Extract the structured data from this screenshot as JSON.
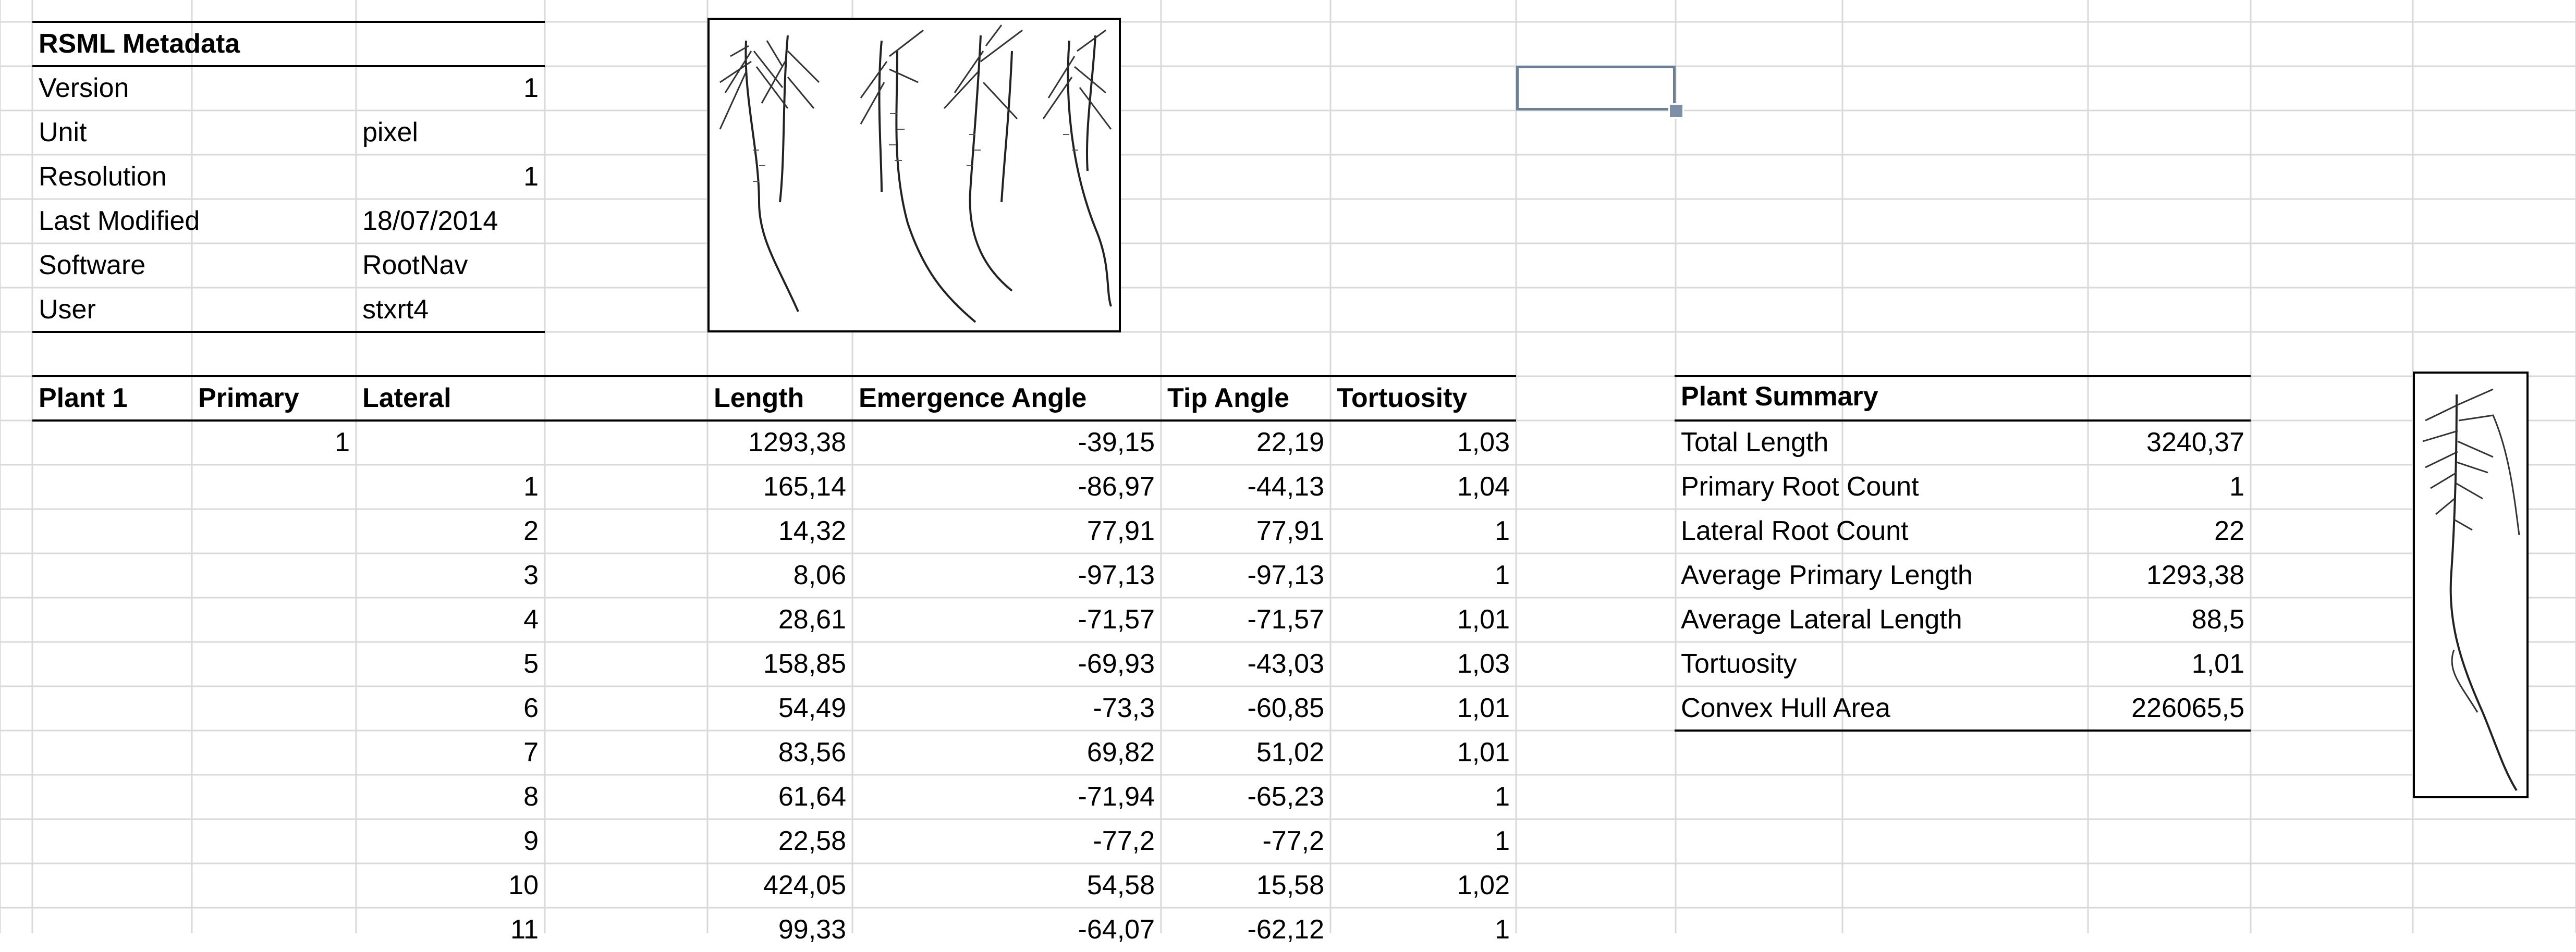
{
  "metadata": {
    "title": "RSML Metadata",
    "rows": [
      {
        "label": "Version",
        "value": "1",
        "align": "r"
      },
      {
        "label": "Unit",
        "value": "pixel",
        "align": "l"
      },
      {
        "label": "Resolution",
        "value": "1",
        "align": "r"
      },
      {
        "label": "Last Modified",
        "value": "18/07/2014",
        "align": "l"
      },
      {
        "label": "Software",
        "value": "RootNav",
        "align": "l"
      },
      {
        "label": "User",
        "value": "stxrt4",
        "align": "l"
      }
    ]
  },
  "root_table": {
    "headers": [
      "Plant 1",
      "Primary",
      "Lateral",
      "Length",
      "Emergence Angle",
      "Tip Angle",
      "Tortuosity"
    ],
    "rows": [
      [
        "",
        "1",
        "",
        "1293,38",
        "-39,15",
        "22,19",
        "1,03"
      ],
      [
        "",
        "",
        "1",
        "165,14",
        "-86,97",
        "-44,13",
        "1,04"
      ],
      [
        "",
        "",
        "2",
        "14,32",
        "77,91",
        "77,91",
        "1"
      ],
      [
        "",
        "",
        "3",
        "8,06",
        "-97,13",
        "-97,13",
        "1"
      ],
      [
        "",
        "",
        "4",
        "28,61",
        "-71,57",
        "-71,57",
        "1,01"
      ],
      [
        "",
        "",
        "5",
        "158,85",
        "-69,93",
        "-43,03",
        "1,03"
      ],
      [
        "",
        "",
        "6",
        "54,49",
        "-73,3",
        "-60,85",
        "1,01"
      ],
      [
        "",
        "",
        "7",
        "83,56",
        "69,82",
        "51,02",
        "1,01"
      ],
      [
        "",
        "",
        "8",
        "61,64",
        "-71,94",
        "-65,23",
        "1"
      ],
      [
        "",
        "",
        "9",
        "22,58",
        "-77,2",
        "-77,2",
        "1"
      ],
      [
        "",
        "",
        "10",
        "424,05",
        "54,58",
        "15,58",
        "1,02"
      ],
      [
        "",
        "",
        "11",
        "99,33",
        "-64,07",
        "-62,12",
        "1"
      ]
    ]
  },
  "summary": {
    "title": "Plant Summary",
    "rows": [
      {
        "label": "Total Length",
        "value": "3240,37"
      },
      {
        "label": "Primary Root Count",
        "value": "1"
      },
      {
        "label": "Lateral Root Count",
        "value": "22"
      },
      {
        "label": "Average Primary Length",
        "value": "1293,38"
      },
      {
        "label": "Average Lateral Length",
        "value": "88,5"
      },
      {
        "label": "Tortuosity",
        "value": "1,01"
      },
      {
        "label": "Convex Hull Area",
        "value": "226065,5"
      }
    ]
  },
  "selection": {
    "cell": "selected"
  },
  "colors": {
    "gridline": "#d9d9d9",
    "border": "#000000",
    "selection": "#6c7f95",
    "fill_handle": "#7d90a6"
  },
  "images": {
    "root_system_icon": "root-system-drawing",
    "single_plant_icon": "single-plant-root-drawing"
  }
}
